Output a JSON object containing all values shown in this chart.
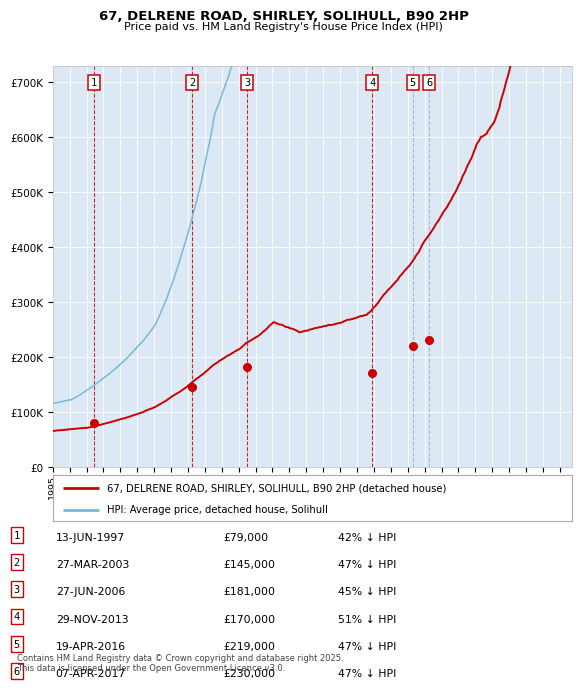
{
  "title": "67, DELRENE ROAD, SHIRLEY, SOLIHULL, B90 2HP",
  "subtitle": "Price paid vs. HM Land Registry's House Price Index (HPI)",
  "ylim": [
    0,
    730000
  ],
  "yticks": [
    0,
    100000,
    200000,
    300000,
    400000,
    500000,
    600000,
    700000
  ],
  "ytick_labels": [
    "£0",
    "£100K",
    "£200K",
    "£300K",
    "£400K",
    "£500K",
    "£600K",
    "£700K"
  ],
  "xlim_start": 1995.0,
  "xlim_end": 2025.7,
  "background_color": "#dce9f5",
  "grid_color": "#ffffff",
  "sale_color": "#cc0000",
  "hpi_color": "#7ab8d9",
  "legend_label_sale": "67, DELRENE ROAD, SHIRLEY, SOLIHULL, B90 2HP (detached house)",
  "legend_label_hpi": "HPI: Average price, detached house, Solihull",
  "footer": "Contains HM Land Registry data © Crown copyright and database right 2025.\nThis data is licensed under the Open Government Licence v3.0.",
  "sales": [
    {
      "num": 1,
      "date_dec": 1997.45,
      "price": 79000,
      "label": "13-JUN-1997",
      "amount": "£79,000",
      "pct": "42% ↓ HPI"
    },
    {
      "num": 2,
      "date_dec": 2003.24,
      "price": 145000,
      "label": "27-MAR-2003",
      "amount": "£145,000",
      "pct": "47% ↓ HPI"
    },
    {
      "num": 3,
      "date_dec": 2006.49,
      "price": 181000,
      "label": "27-JUN-2006",
      "amount": "£181,000",
      "pct": "45% ↓ HPI"
    },
    {
      "num": 4,
      "date_dec": 2013.91,
      "price": 170000,
      "label": "29-NOV-2013",
      "amount": "£170,000",
      "pct": "51% ↓ HPI"
    },
    {
      "num": 5,
      "date_dec": 2016.3,
      "price": 219000,
      "label": "19-APR-2016",
      "amount": "£219,000",
      "pct": "47% ↓ HPI"
    },
    {
      "num": 6,
      "date_dec": 2017.27,
      "price": 230000,
      "label": "07-APR-2017",
      "amount": "£230,000",
      "pct": "47% ↓ HPI"
    }
  ]
}
